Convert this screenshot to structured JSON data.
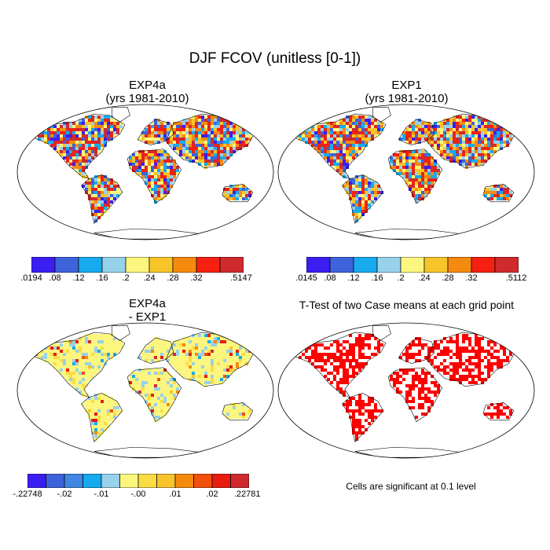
{
  "figure": {
    "title": "DJF FCOV (unitless [0-1])"
  },
  "panels": [
    {
      "id": "exp4a",
      "title_line1": "EXP4a",
      "title_line2": "(yrs 1981-2010)",
      "palette": [
        "#3b1ef2",
        "#3d63db",
        "#18aaee",
        "#97d1ea",
        "#fcf67f",
        "#f7c42a",
        "#f58b0e",
        "#f52010",
        "#cf2a2e"
      ],
      "colorbar_labels": [
        ".0194",
        ".08",
        ".12",
        ".16",
        ".2",
        ".24",
        ".28",
        ".32",
        ".5147"
      ]
    },
    {
      "id": "exp1",
      "title_line1": "EXP1",
      "title_line2": "(yrs 1981-2010)",
      "palette": [
        "#3b1ef2",
        "#3d63db",
        "#18aaee",
        "#97d1ea",
        "#fcf67f",
        "#f7c42a",
        "#f58b0e",
        "#f52010",
        "#cf2a2e"
      ],
      "colorbar_labels": [
        ".0145",
        ".08",
        ".12",
        ".16",
        ".2",
        ".24",
        ".28",
        ".32",
        ".5112"
      ]
    },
    {
      "id": "diff",
      "title_line1": "EXP4a",
      "title_line2": "- EXP1",
      "palette": [
        "#3b1ef2",
        "#3d63db",
        "#3f87e2",
        "#18aaee",
        "#97d1ea",
        "#fcf67f",
        "#f9dc43",
        "#f7c42a",
        "#f58b0e",
        "#f24f0c",
        "#e81c0f",
        "#cf2a2e"
      ],
      "colorbar_labels": [
        "-.22748",
        "-.02",
        "-.01",
        "-.00",
        ".01",
        ".02",
        ".22781"
      ]
    },
    {
      "id": "ttest",
      "title_line1": "T-Test of two Case means at each grid point",
      "significance_color": "#ff0000",
      "note": "Cells are significant at 0.1 level"
    }
  ]
}
